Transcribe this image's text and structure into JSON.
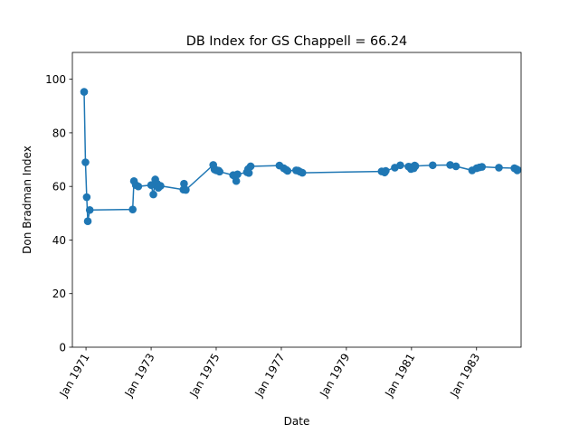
{
  "chart_data": {
    "type": "line",
    "title": "DB Index for GS Chappell = 66.24",
    "xlabel": "Date",
    "ylabel": "Don Bradman Index",
    "xlim": [
      "1970-08-01",
      "1984-05-15"
    ],
    "ylim": [
      0,
      110
    ],
    "yticks": [
      0,
      20,
      40,
      60,
      80,
      100
    ],
    "xticks": [
      {
        "date": "1971-01-01",
        "label": "Jan 1971"
      },
      {
        "date": "1973-01-01",
        "label": "Jan 1973"
      },
      {
        "date": "1975-01-01",
        "label": "Jan 1975"
      },
      {
        "date": "1977-01-01",
        "label": "Jan 1977"
      },
      {
        "date": "1979-01-01",
        "label": "Jan 1979"
      },
      {
        "date": "1981-01-01",
        "label": "Jan 1981"
      },
      {
        "date": "1983-01-01",
        "label": "Jan 1983"
      }
    ],
    "grid": false,
    "legend": false,
    "color": "#1f77b4",
    "series": [
      {
        "x": [
          "1970-12-11",
          "1970-12-26",
          "1971-01-09",
          "1971-01-21",
          "1971-02-12",
          "1972-06-08",
          "1972-06-22",
          "1972-07-13",
          "1972-08-10",
          "1973-01-01",
          "1973-01-26",
          "1973-02-16",
          "1973-03-08",
          "1973-03-23",
          "1973-04-16",
          "1973-12-29",
          "1974-01-05",
          "1974-01-25",
          "1974-11-29",
          "1974-12-13",
          "1974-12-26",
          "1975-01-04",
          "1975-01-28",
          "1975-02-08",
          "1975-07-10",
          "1975-07-31",
          "1975-08-14",
          "1975-08-28",
          "1975-12-12",
          "1975-12-26",
          "1976-01-03",
          "1976-01-23",
          "1976-12-11",
          "1977-01-28",
          "1977-02-25",
          "1977-03-12",
          "1977-06-16",
          "1977-07-07",
          "1977-07-28",
          "1977-08-25",
          "1980-02-01",
          "1980-03-06",
          "1980-03-18",
          "1980-06-28",
          "1980-08-28",
          "1980-11-28",
          "1980-12-12",
          "1980-12-26",
          "1981-01-02",
          "1981-01-27",
          "1981-02-06",
          "1981-02-13",
          "1981-08-27",
          "1982-03-11",
          "1982-05-15",
          "1982-11-12",
          "1983-01-02",
          "1983-02-02",
          "1983-03-03",
          "1983-09-09",
          "1984-03-01",
          "1984-03-20",
          "1984-04-02",
          "1984-04-05"
        ],
        "y": [
          95.3,
          69.0,
          56.0,
          47.0,
          51.2,
          51.4,
          62.0,
          60.5,
          60.0,
          60.5,
          57.0,
          62.6,
          61.0,
          59.5,
          60.2,
          58.8,
          61.0,
          58.7,
          68.0,
          66.3,
          66.2,
          66.0,
          65.9,
          65.5,
          64.2,
          63.8,
          62.0,
          64.5,
          65.3,
          66.5,
          65.0,
          67.5,
          67.8,
          66.8,
          66.2,
          65.8,
          66.0,
          65.9,
          65.5,
          65.1,
          65.6,
          65.2,
          65.8,
          67.0,
          67.9,
          67.4,
          67.3,
          66.5,
          67.0,
          66.8,
          67.8,
          67.6,
          67.9,
          68.0,
          67.5,
          66.0,
          66.8,
          67.1,
          67.3,
          67.0,
          66.8,
          66.5,
          66.0,
          66.2
        ]
      }
    ]
  }
}
